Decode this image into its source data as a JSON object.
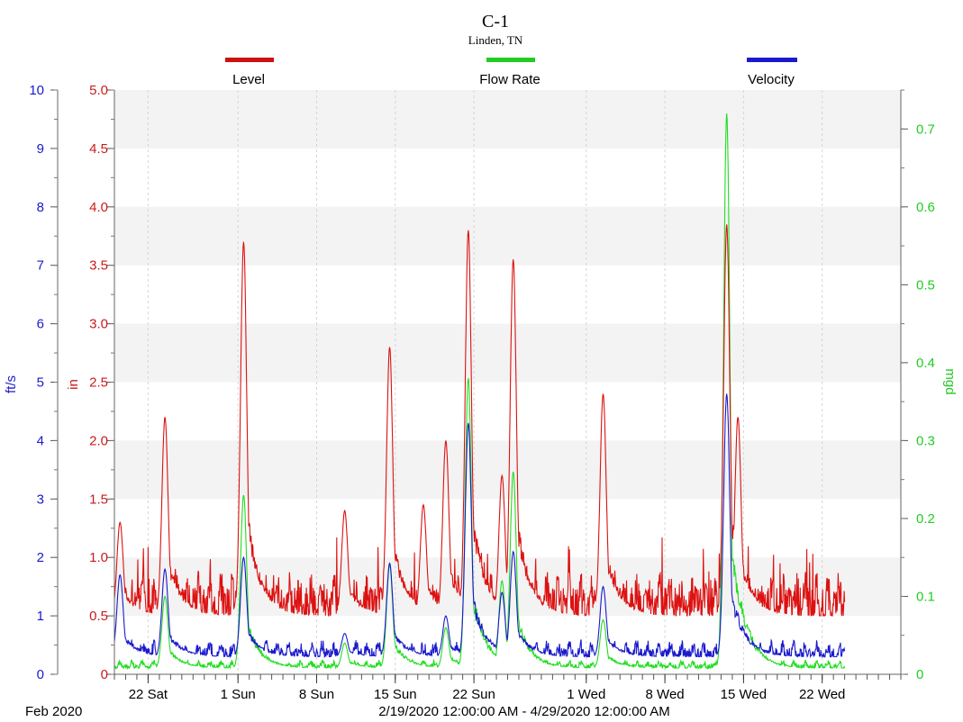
{
  "chart_data": {
    "type": "line",
    "title": "C-1",
    "subtitle": "Linden, TN",
    "date_range": "2/19/2020 12:00:00 AM - 4/29/2020 12:00:00 AM",
    "month_label": "Feb 2020",
    "legend_placement": "top",
    "grid": true,
    "x": {
      "start_date": "2020-02-19",
      "end_date": "2020-04-29",
      "data_end_date": "2020-04-24",
      "tick_labels": [
        {
          "date": "2020-02-22",
          "label": "22 Sat"
        },
        {
          "date": "2020-03-01",
          "label": "1 Sun"
        },
        {
          "date": "2020-03-08",
          "label": "8 Sun"
        },
        {
          "date": "2020-03-15",
          "label": "15 Sun"
        },
        {
          "date": "2020-03-22",
          "label": "22 Sun"
        },
        {
          "date": "2020-04-01",
          "label": "1 Wed"
        },
        {
          "date": "2020-04-08",
          "label": "8 Wed"
        },
        {
          "date": "2020-04-15",
          "label": "15 Wed"
        },
        {
          "date": "2020-04-22",
          "label": "22 Wed"
        }
      ]
    },
    "axes": [
      {
        "id": "velocity",
        "label": "ft/s",
        "side": "left-outer",
        "color": "#1a1acc",
        "range": [
          0,
          10
        ],
        "ticks": [
          "0",
          "1",
          "2",
          "3",
          "4",
          "5",
          "6",
          "7",
          "8",
          "9",
          "10"
        ]
      },
      {
        "id": "level",
        "label": "in",
        "side": "left-inner",
        "color": "#cc1a1a",
        "range": [
          0,
          5
        ],
        "ticks": [
          "0",
          "0.5",
          "1.0",
          "1.5",
          "2.0",
          "2.5",
          "3.0",
          "3.5",
          "4.0",
          "4.5",
          "5.0"
        ]
      },
      {
        "id": "flow",
        "label": "mgd",
        "side": "right",
        "color": "#22cc22",
        "range": [
          0,
          0.75
        ],
        "ticks": [
          "0",
          "0.1",
          "0.2",
          "0.3",
          "0.4",
          "0.5",
          "0.6",
          "0.7"
        ]
      }
    ],
    "series": [
      {
        "name": "Level",
        "axis": "level",
        "color": "#dd1111",
        "baseline": 0.5,
        "peaks": [
          {
            "date": "2020-02-19",
            "value": 1.3
          },
          {
            "date": "2020-02-23",
            "value": 2.2
          },
          {
            "date": "2020-03-01",
            "value": 3.7
          },
          {
            "date": "2020-03-10",
            "value": 1.4
          },
          {
            "date": "2020-03-14",
            "value": 2.8
          },
          {
            "date": "2020-03-17",
            "value": 1.45
          },
          {
            "date": "2020-03-19",
            "value": 2.0
          },
          {
            "date": "2020-03-21",
            "value": 3.8
          },
          {
            "date": "2020-03-24",
            "value": 1.7
          },
          {
            "date": "2020-03-25",
            "value": 3.55
          },
          {
            "date": "2020-04-02",
            "value": 2.4
          },
          {
            "date": "2020-04-13",
            "value": 3.85
          },
          {
            "date": "2020-04-14",
            "value": 2.2
          }
        ]
      },
      {
        "name": "Flow Rate",
        "axis": "flow",
        "color": "#22dd22",
        "baseline": 0.008,
        "peaks": [
          {
            "date": "2020-02-23",
            "value": 0.1
          },
          {
            "date": "2020-03-01",
            "value": 0.23
          },
          {
            "date": "2020-03-10",
            "value": 0.04
          },
          {
            "date": "2020-03-14",
            "value": 0.14
          },
          {
            "date": "2020-03-19",
            "value": 0.06
          },
          {
            "date": "2020-03-21",
            "value": 0.38
          },
          {
            "date": "2020-03-24",
            "value": 0.12
          },
          {
            "date": "2020-03-25",
            "value": 0.26
          },
          {
            "date": "2020-04-02",
            "value": 0.07
          },
          {
            "date": "2020-04-13",
            "value": 0.72
          }
        ]
      },
      {
        "name": "Velocity",
        "axis": "velocity",
        "color": "#1a1acc",
        "baseline": 0.3,
        "peaks": [
          {
            "date": "2020-02-19",
            "value": 1.7
          },
          {
            "date": "2020-02-23",
            "value": 1.8
          },
          {
            "date": "2020-03-01",
            "value": 2.0
          },
          {
            "date": "2020-03-10",
            "value": 0.7
          },
          {
            "date": "2020-03-14",
            "value": 1.9
          },
          {
            "date": "2020-03-19",
            "value": 1.0
          },
          {
            "date": "2020-03-21",
            "value": 4.3
          },
          {
            "date": "2020-03-24",
            "value": 1.4
          },
          {
            "date": "2020-03-25",
            "value": 2.1
          },
          {
            "date": "2020-04-02",
            "value": 1.5
          },
          {
            "date": "2020-04-13",
            "value": 4.8
          }
        ]
      }
    ]
  }
}
